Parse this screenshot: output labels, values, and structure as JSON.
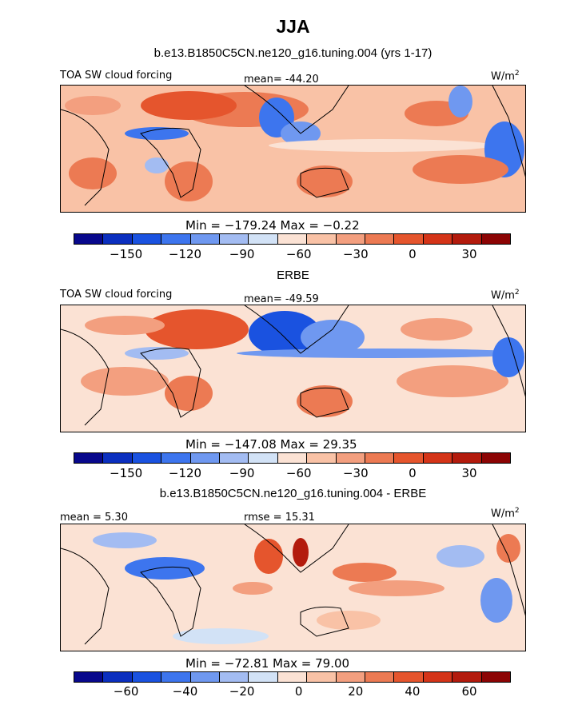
{
  "title": "JJA",
  "colors": [
    "#08088c",
    "#0b2fbf",
    "#1a52e0",
    "#3d75ee",
    "#6f98f0",
    "#a3bcf2",
    "#d2e2f6",
    "#fbe2d4",
    "#f9c2a6",
    "#f39f7f",
    "#ec7a53",
    "#e5552d",
    "#d43418",
    "#b31b0d",
    "#8c0404"
  ],
  "panels": [
    {
      "title": "b.e13.B1850C5CN.ne120_g16.tuning.004 (yrs 1-17)",
      "left_label": "TOA SW cloud forcing",
      "center_label": "mean= -44.20",
      "units": "W/m",
      "units_sup": "2",
      "minmax": "Min = −179.24  Max =  −0.22",
      "ticks": [
        "−150",
        "−120",
        "−90",
        "−60",
        "−30",
        "0",
        "30"
      ]
    },
    {
      "title": "ERBE",
      "left_label": "TOA SW cloud forcing",
      "center_label": "mean= -49.59",
      "units": "W/m",
      "units_sup": "2",
      "minmax": "Min = −147.08  Max =  29.35",
      "ticks": [
        "−150",
        "−120",
        "−90",
        "−60",
        "−30",
        "0",
        "30"
      ]
    },
    {
      "title": "b.e13.B1850C5CN.ne120_g16.tuning.004 - ERBE",
      "left_label": "mean =   5.30",
      "center_label": "rmse =  15.31",
      "units": "W/m",
      "units_sup": "2",
      "minmax": "Min = −72.81  Max =  79.00",
      "ticks": [
        "−60",
        "−40",
        "−20",
        "0",
        "20",
        "40",
        "60"
      ]
    }
  ]
}
